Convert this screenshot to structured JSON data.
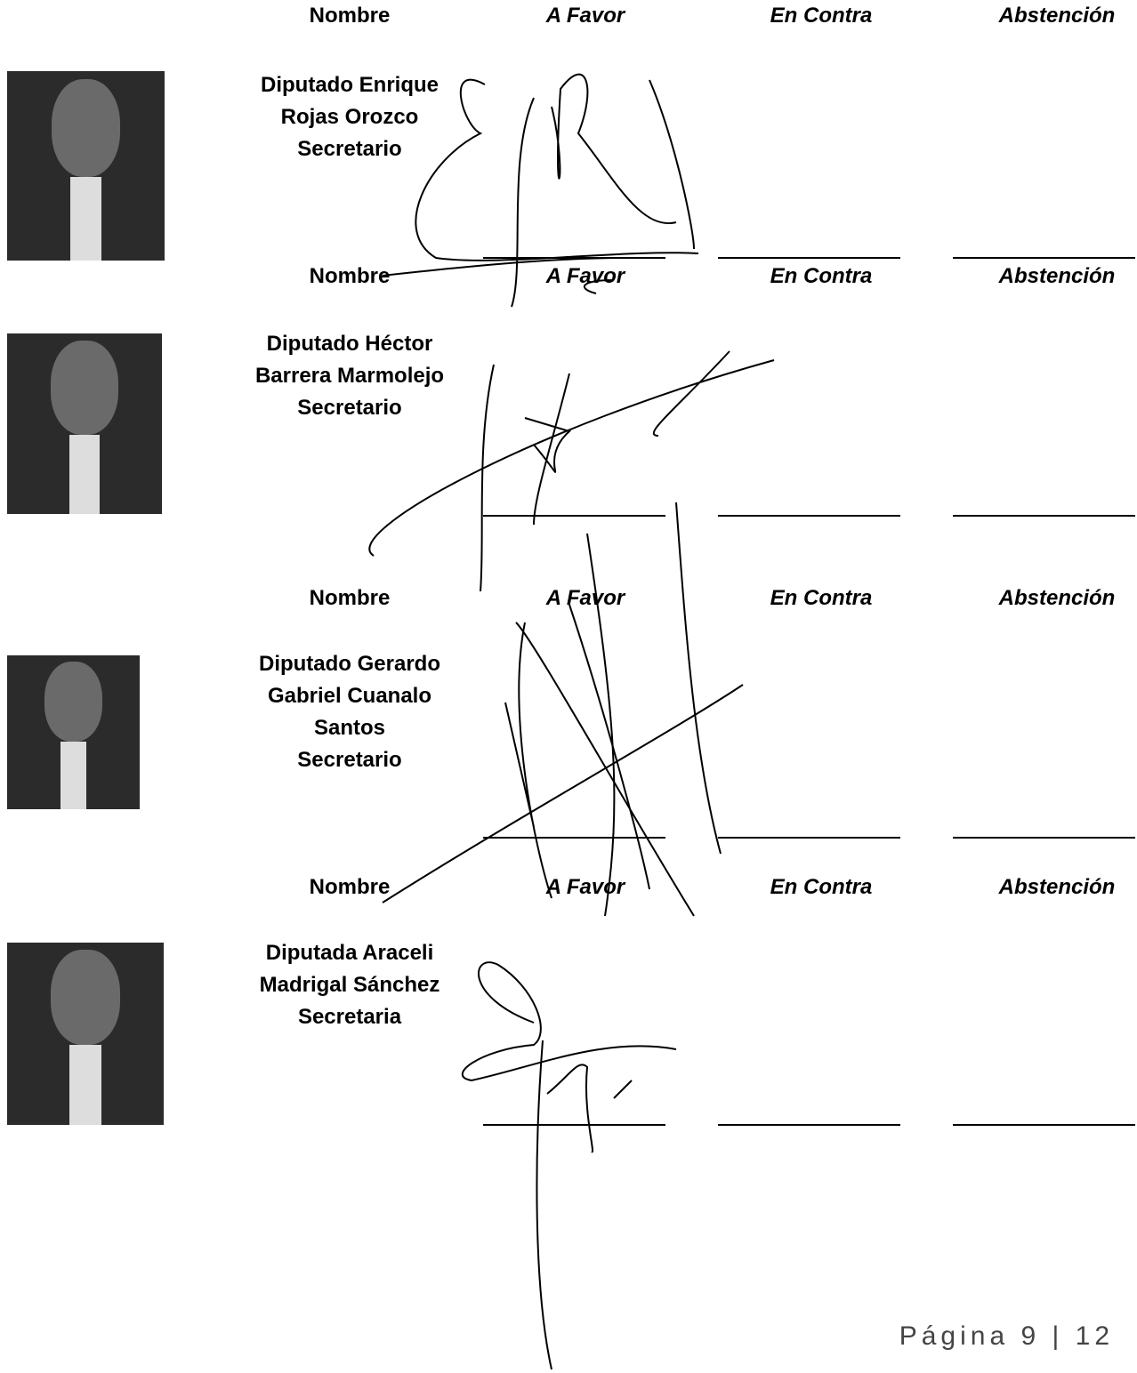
{
  "headers": {
    "nombre": "Nombre",
    "a_favor": "A Favor",
    "en_contra": "En Contra",
    "abstencion": "Abstención"
  },
  "members": [
    {
      "lines": [
        "Diputado Enrique",
        "Rojas Orozco",
        "Secretario"
      ]
    },
    {
      "lines": [
        "Diputado Héctor",
        "Barrera Marmolejo",
        "Secretario"
      ]
    },
    {
      "lines": [
        "Diputado Gerardo",
        "Gabriel Cuanalo",
        "Santos",
        "Secretario"
      ]
    },
    {
      "lines": [
        "Diputada Araceli",
        "Madrigal Sánchez",
        "Secretaria"
      ]
    }
  ],
  "footer": "Página 9 | 12"
}
